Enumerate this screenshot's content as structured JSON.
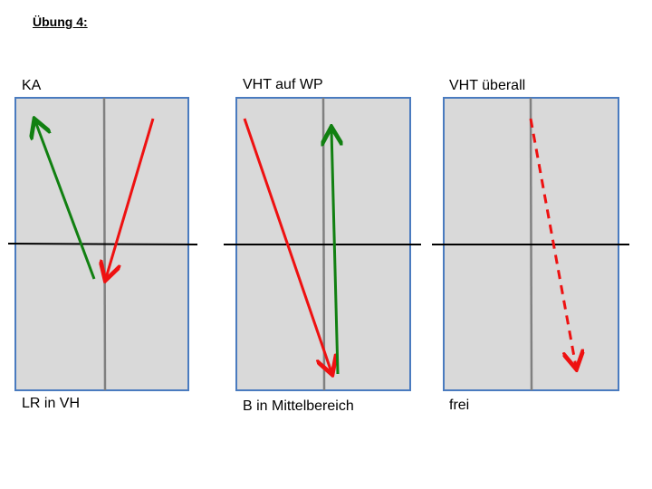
{
  "header": {
    "title": "Übung 4:"
  },
  "panels": [
    {
      "top_label": "KA",
      "bottom_label": "LR in VH"
    },
    {
      "top_label": "VHT auf WP",
      "bottom_label": "B in Mittelbereich"
    },
    {
      "top_label": "VHT überall",
      "bottom_label": "frei"
    }
  ]
}
